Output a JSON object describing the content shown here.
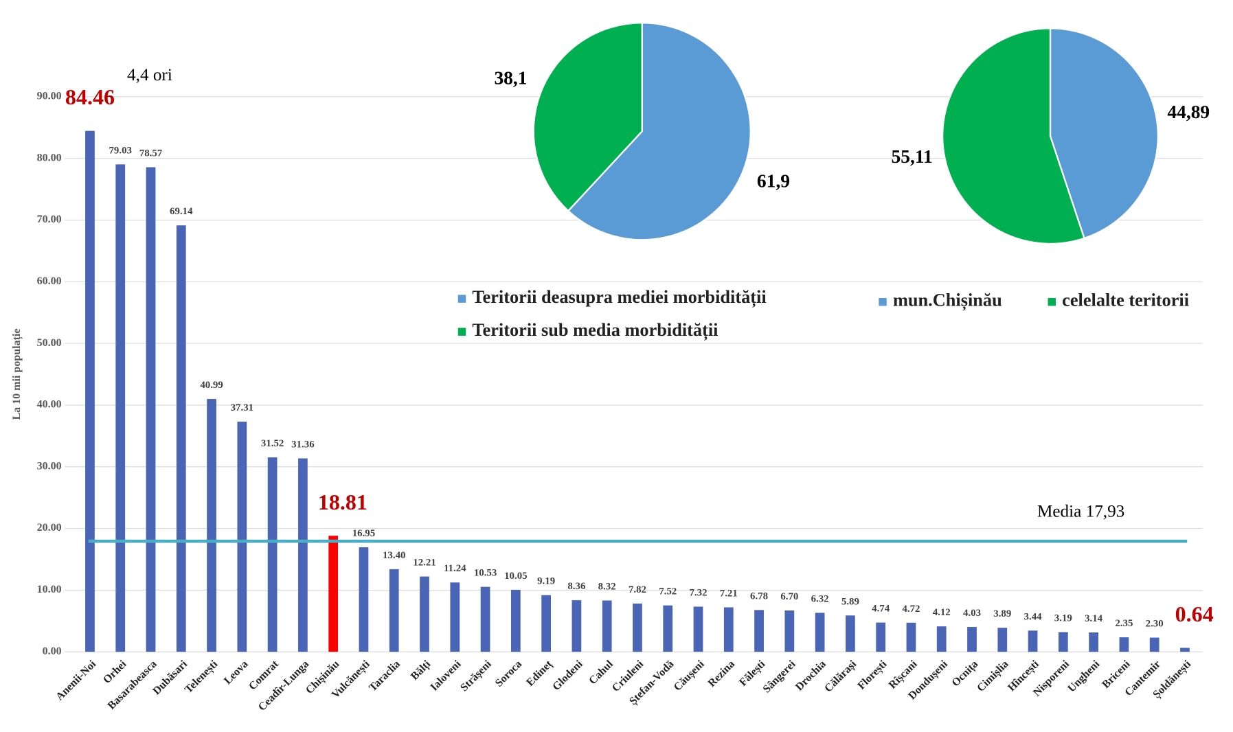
{
  "chart_data": [
    {
      "type": "bar",
      "y_label": "La 10 mii populație",
      "annotation": "4,4 ori",
      "categories": [
        "Anenii-Noi",
        "Orhei",
        "Basarabeasca",
        "Dubăsari",
        "Telenești",
        "Leova",
        "Comrat",
        "Ceadîr-Lunga",
        "Chișinău",
        "Vulcănești",
        "Taraclia",
        "Bălți",
        "Ialoveni",
        "Strășeni",
        "Soroca",
        "Edineț",
        "Glodeni",
        "Cahul",
        "Criuleni",
        "Ștefan-Vodă",
        "Căușeni",
        "Rezina",
        "Fălești",
        "Sângerei",
        "Drochia",
        "Călărași",
        "Florești",
        "Rîșcani",
        "Dondușeni",
        "Ocnița",
        "Cimișlia",
        "Hîncești",
        "Nisporeni",
        "Ungheni",
        "Briceni",
        "Cantemir",
        "Șoldănești"
      ],
      "values": [
        84.46,
        79.03,
        78.57,
        69.14,
        40.99,
        37.31,
        31.52,
        31.36,
        18.81,
        16.95,
        13.4,
        12.21,
        11.24,
        10.53,
        10.05,
        9.19,
        8.36,
        8.32,
        7.82,
        7.52,
        7.32,
        7.21,
        6.78,
        6.7,
        6.32,
        5.89,
        4.74,
        4.72,
        4.12,
        4.03,
        3.89,
        3.44,
        3.19,
        3.14,
        2.35,
        2.3,
        0.64
      ],
      "value_labels": [
        "84.46",
        "79.03",
        "78.57",
        "69.14",
        "40.99",
        "37.31",
        "31.52",
        "31.36",
        "18.81",
        "16.95",
        "13.40",
        "12.21",
        "11.24",
        "10.53",
        "10.05",
        "9.19",
        "8.36",
        "8.32",
        "7.82",
        "7.52",
        "7.32",
        "7.21",
        "6.78",
        "6.70",
        "6.32",
        "5.89",
        "4.74",
        "4.72",
        "4.12",
        "4.03",
        "3.89",
        "3.44",
        "3.19",
        "3.14",
        "2.35",
        "2.30",
        "0.64"
      ],
      "colors": [
        "#4a65b5",
        "#4a65b5",
        "#4a65b5",
        "#4a65b5",
        "#4a65b5",
        "#4a65b5",
        "#4a65b5",
        "#4a65b5",
        "#ff0000",
        "#4a65b5",
        "#4a65b5",
        "#4a65b5",
        "#4a65b5",
        "#4a65b5",
        "#4a65b5",
        "#4a65b5",
        "#4a65b5",
        "#4a65b5",
        "#4a65b5",
        "#4a65b5",
        "#4a65b5",
        "#4a65b5",
        "#4a65b5",
        "#4a65b5",
        "#4a65b5",
        "#4a65b5",
        "#4a65b5",
        "#4a65b5",
        "#4a65b5",
        "#4a65b5",
        "#4a65b5",
        "#4a65b5",
        "#4a65b5",
        "#4a65b5",
        "#4a65b5",
        "#4a65b5",
        "#4a65b5"
      ],
      "value_label_colors": [
        "#c00000",
        "#404040",
        "#404040",
        "#404040",
        "#404040",
        "#404040",
        "#404040",
        "#404040",
        "#c00000",
        "#404040",
        "#404040",
        "#404040",
        "#404040",
        "#404040",
        "#404040",
        "#404040",
        "#404040",
        "#404040",
        "#404040",
        "#404040",
        "#404040",
        "#404040",
        "#404040",
        "#404040",
        "#404040",
        "#404040",
        "#404040",
        "#404040",
        "#404040",
        "#404040",
        "#404040",
        "#404040",
        "#404040",
        "#404040",
        "#404040",
        "#404040",
        "#c00000"
      ],
      "ylim": [
        0,
        90
      ],
      "yticks": [
        {
          "value": 0,
          "label": "0.00"
        },
        {
          "value": 10,
          "label": "10.00"
        },
        {
          "value": 20,
          "label": "20.00"
        },
        {
          "value": 30,
          "label": "30.00"
        },
        {
          "value": 40,
          "label": "40.00"
        },
        {
          "value": 50,
          "label": "50.00"
        },
        {
          "value": 60,
          "label": "60.00"
        },
        {
          "value": 70,
          "label": "70.00"
        },
        {
          "value": 80,
          "label": "80.00"
        },
        {
          "value": 90,
          "label": "90.00"
        }
      ],
      "grid": true,
      "reference_line": {
        "value": 17.93,
        "label": "Media 17,93",
        "color": "#4bacc6"
      }
    },
    {
      "type": "pie",
      "categories": [
        "Teritorii deasupra mediei morbidității",
        "Teritorii sub media morbidității"
      ],
      "values": [
        61.9,
        38.1
      ],
      "value_labels": [
        "61,9",
        "38,1"
      ],
      "colors": [
        "#5b9bd5",
        "#00b050"
      ]
    },
    {
      "type": "pie",
      "categories": [
        "mun.Chișinău",
        "celelalte teritorii"
      ],
      "values": [
        44.89,
        55.11
      ],
      "value_labels": [
        "44,89",
        "55,11"
      ],
      "colors": [
        "#5b9bd5",
        "#00b050"
      ]
    }
  ]
}
